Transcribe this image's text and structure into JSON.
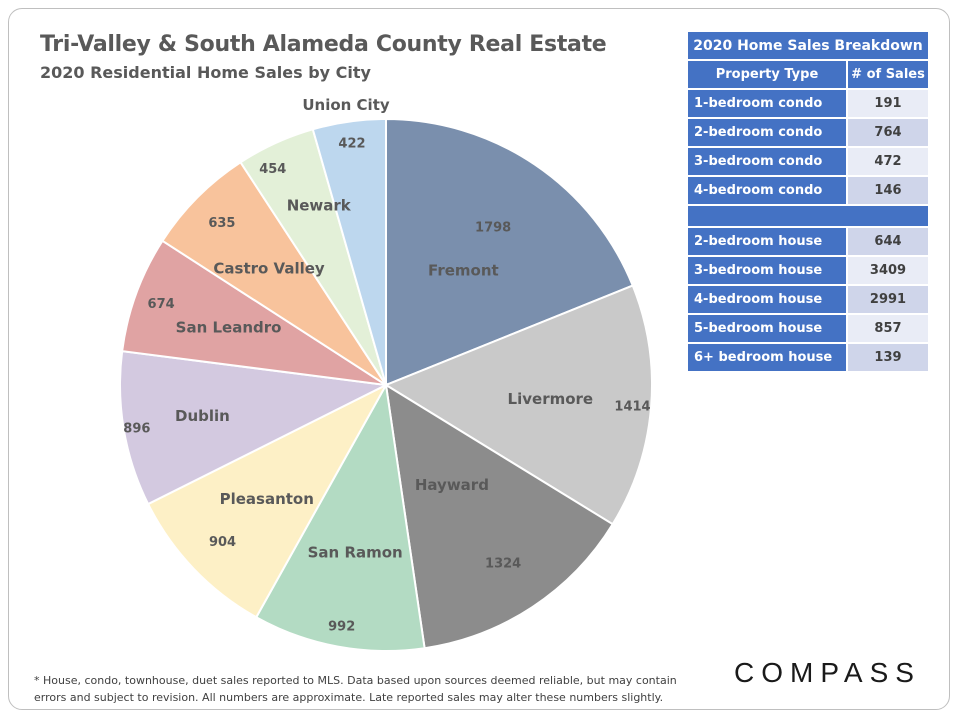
{
  "title": "Tri-Valley & South Alameda County Real Estate",
  "subtitle": "2020 Residential Home Sales by City",
  "chart_data": {
    "type": "pie",
    "title": "Tri-Valley & South Alameda County Real Estate",
    "subtitle": "2020 Residential Home Sales by City",
    "start_angle_deg": 0,
    "direction": "clockwise",
    "slices": [
      {
        "label": "Fremont",
        "value": 1798,
        "color": "#7a8fad"
      },
      {
        "label": "Livermore",
        "value": 1414,
        "color": "#c9c9c9"
      },
      {
        "label": "Hayward",
        "value": 1324,
        "color": "#8c8c8c"
      },
      {
        "label": "San Ramon",
        "value": 992,
        "color": "#b3dbc3"
      },
      {
        "label": "Pleasanton",
        "value": 904,
        "color": "#fdf0c6"
      },
      {
        "label": "Dublin",
        "value": 896,
        "color": "#d3c9e0"
      },
      {
        "label": "San Leandro",
        "value": 674,
        "color": "#e0a3a3"
      },
      {
        "label": "Castro Valley",
        "value": 635,
        "color": "#f8c39c"
      },
      {
        "label": "Newark",
        "value": 454,
        "color": "#e3f0d8"
      },
      {
        "label": "Union City",
        "value": 422,
        "color": "#bdd7ee"
      }
    ]
  },
  "breakdown": {
    "title": "2020 Home Sales Breakdown",
    "col_type": "Property Type",
    "col_sales": "# of Sales",
    "condos": [
      {
        "type": "1-bedroom condo",
        "sales": "191"
      },
      {
        "type": "2-bedroom condo",
        "sales": "764"
      },
      {
        "type": "3-bedroom condo",
        "sales": "472"
      },
      {
        "type": "4-bedroom condo",
        "sales": "146"
      }
    ],
    "houses": [
      {
        "type": "2-bedroom house",
        "sales": "644"
      },
      {
        "type": "3-bedroom house",
        "sales": "3409"
      },
      {
        "type": "4-bedroom house",
        "sales": "2991"
      },
      {
        "type": "5-bedroom house",
        "sales": "857"
      },
      {
        "type": "6+ bedroom house",
        "sales": "139"
      }
    ]
  },
  "footnote_line1": "* House, condo, townhouse, duet sales reported to MLS. Data based upon sources deemed reliable, but may contain",
  "footnote_line2": "errors and subject to revision. All numbers are approximate. Late reported sales may alter these numbers slightly.",
  "logo": "COMPASS"
}
